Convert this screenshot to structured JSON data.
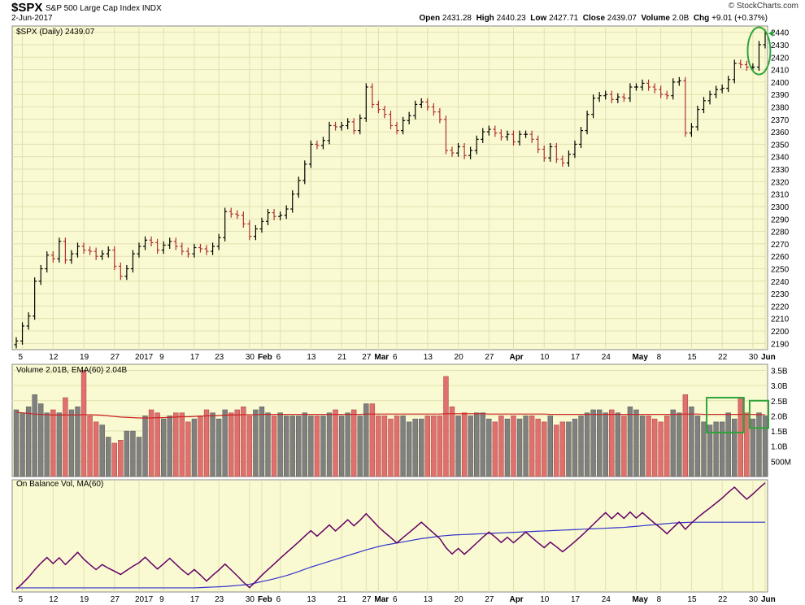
{
  "header": {
    "symbol": "$SPX",
    "description": "S&P 500 Large Cap Index  INDX",
    "date": "2-Jun-2017",
    "brand": "© StockCharts.com",
    "open_label": "Open",
    "open": "2431.28",
    "high_label": "High",
    "high": "2440.23",
    "low_label": "Low",
    "low": "2427.71",
    "close_label": "Close",
    "close": "2439.07",
    "volume_label": "Volume",
    "volume": "2.0B",
    "chg_label": "Chg",
    "chg": "+9.01 (+0.37%)"
  },
  "panels": {
    "price_label": "$SPX (Daily) 2439.07",
    "volume_label": "Volume 2.01B, EMA(60) 2.04B",
    "obv_label": "On Balance Vol, MA(60)"
  },
  "colors": {
    "panel_bg": "#fafad2",
    "up": "#000000",
    "down": "#b03030",
    "vol_up": "#808080",
    "vol_down": "#e07070",
    "ema": "#cc2222",
    "obv": "#660066",
    "obv_ma": "#3333cc",
    "annotation": "#2ea43a"
  },
  "chart_data": [
    {
      "type": "ohlc",
      "title": "$SPX (Daily) 2439.07",
      "ylim": [
        2185,
        2445
      ],
      "yticks": [
        2190,
        2200,
        2210,
        2220,
        2230,
        2240,
        2250,
        2260,
        2270,
        2280,
        2290,
        2300,
        2310,
        2320,
        2330,
        2340,
        2350,
        2360,
        2370,
        2380,
        2390,
        2400,
        2410,
        2420,
        2430,
        2440
      ],
      "x_ticks": [
        {
          "i": 1,
          "label": "5"
        },
        {
          "i": 6,
          "label": "12"
        },
        {
          "i": 11,
          "label": "19"
        },
        {
          "i": 16,
          "label": "27"
        },
        {
          "i": 20,
          "label": "2017"
        },
        {
          "i": 24,
          "label": "9"
        },
        {
          "i": 29,
          "label": "17"
        },
        {
          "i": 33,
          "label": "23"
        },
        {
          "i": 38,
          "label": "30"
        },
        {
          "i": 40,
          "label": "Feb"
        },
        {
          "i": 43,
          "label": "6"
        },
        {
          "i": 48,
          "label": "13"
        },
        {
          "i": 53,
          "label": "21"
        },
        {
          "i": 57,
          "label": "27"
        },
        {
          "i": 59,
          "label": "Mar"
        },
        {
          "i": 62,
          "label": "6"
        },
        {
          "i": 67,
          "label": "13"
        },
        {
          "i": 72,
          "label": "20"
        },
        {
          "i": 77,
          "label": "27"
        },
        {
          "i": 81,
          "label": "Apr"
        },
        {
          "i": 86,
          "label": "10"
        },
        {
          "i": 91,
          "label": "17"
        },
        {
          "i": 96,
          "label": "24"
        },
        {
          "i": 101,
          "label": "May"
        },
        {
          "i": 105,
          "label": "8"
        },
        {
          "i": 110,
          "label": "15"
        },
        {
          "i": 115,
          "label": "22"
        },
        {
          "i": 120,
          "label": "30"
        },
        {
          "i": 122,
          "label": "Jun"
        }
      ],
      "close": [
        2192,
        2204,
        2212,
        2240,
        2250,
        2261,
        2258,
        2272,
        2257,
        2262,
        2268,
        2265,
        2264,
        2260,
        2262,
        2265,
        2252,
        2244,
        2250,
        2262,
        2268,
        2273,
        2271,
        2265,
        2269,
        2272,
        2268,
        2264,
        2262,
        2267,
        2266,
        2264,
        2268,
        2275,
        2296,
        2294,
        2293,
        2286,
        2276,
        2282,
        2288,
        2295,
        2292,
        2293,
        2298,
        2310,
        2321,
        2334,
        2350,
        2349,
        2353,
        2365,
        2364,
        2365,
        2368,
        2361,
        2371,
        2396,
        2382,
        2378,
        2374,
        2365,
        2361,
        2369,
        2373,
        2382,
        2384,
        2380,
        2376,
        2370,
        2345,
        2343,
        2348,
        2341,
        2345,
        2354,
        2360,
        2362,
        2359,
        2356,
        2358,
        2352,
        2358,
        2358,
        2354,
        2346,
        2339,
        2348,
        2338,
        2335,
        2342,
        2350,
        2361,
        2374,
        2387,
        2389,
        2390,
        2386,
        2388,
        2387,
        2396,
        2396,
        2399,
        2396,
        2394,
        2390,
        2389,
        2400,
        2401,
        2359,
        2364,
        2378,
        2385,
        2390,
        2394,
        2395,
        2402,
        2415,
        2414,
        2412,
        2412,
        2430,
        2439
      ],
      "volume_ylim": [
        0,
        3.7
      ],
      "volume_yticks": [
        {
          "v": 0.5,
          "label": "500M"
        },
        {
          "v": 1.0,
          "label": "1.0B"
        },
        {
          "v": 1.5,
          "label": "1.5B"
        },
        {
          "v": 2.0,
          "label": "2.0B"
        },
        {
          "v": 2.5,
          "label": "2.5B"
        },
        {
          "v": 3.0,
          "label": "3.0B"
        },
        {
          "v": 3.5,
          "label": "3.5B"
        }
      ],
      "volume": [
        2.2,
        2.1,
        2.3,
        2.7,
        2.4,
        2.1,
        2.2,
        2.1,
        2.6,
        2.2,
        2.3,
        3.5,
        2.0,
        1.8,
        1.7,
        1.3,
        1.1,
        1.2,
        1.5,
        1.5,
        1.3,
        2.0,
        2.2,
        2.1,
        1.9,
        2.0,
        2.1,
        2.1,
        1.8,
        1.9,
        2.0,
        2.2,
        2.1,
        1.9,
        2.2,
        2.1,
        2.2,
        2.3,
        2.0,
        2.2,
        2.3,
        2.1,
        2.0,
        2.1,
        2.0,
        2.0,
        2.0,
        2.1,
        2.0,
        2.0,
        2.0,
        2.1,
        2.2,
        2.0,
        2.1,
        2.2,
        2.0,
        2.4,
        2.4,
        2.0,
        2.0,
        1.9,
        2.0,
        2.0,
        1.8,
        1.9,
        1.9,
        2.0,
        2.0,
        2.0,
        3.3,
        2.3,
        2.0,
        2.1,
        2.0,
        2.1,
        2.1,
        1.9,
        1.8,
        2.0,
        1.9,
        2.0,
        1.9,
        2.0,
        2.0,
        1.9,
        1.8,
        2.0,
        1.7,
        1.8,
        1.8,
        1.9,
        2.0,
        2.1,
        2.2,
        2.2,
        2.1,
        2.2,
        2.1,
        2.0,
        2.3,
        2.2,
        2.0,
        2.0,
        1.9,
        1.8,
        2.0,
        2.2,
        2.1,
        2.7,
        2.3,
        2.0,
        1.8,
        1.7,
        1.8,
        1.8,
        2.1,
        1.9,
        2.6,
        2.1,
        1.9,
        2.1,
        2.0
      ],
      "volume_ema60": [
        2.12,
        2.1,
        2.08,
        2.06,
        2.05,
        2.04,
        2.03,
        2.03,
        2.03,
        2.03,
        2.03,
        2.04,
        2.04,
        2.03,
        2.02,
        2.0,
        1.98,
        1.96,
        1.95,
        1.94,
        1.93,
        1.93,
        1.93,
        1.94,
        1.94,
        1.95,
        1.96,
        1.97,
        1.97,
        1.98,
        1.99,
        2.0,
        2.0,
        2.01,
        2.02,
        2.03,
        2.03,
        2.04,
        2.04,
        2.04,
        2.05,
        2.05,
        2.05,
        2.05,
        2.05,
        2.05,
        2.05,
        2.05,
        2.05,
        2.05,
        2.05,
        2.05,
        2.05,
        2.05,
        2.05,
        2.05,
        2.05,
        2.06,
        2.06,
        2.06,
        2.06,
        2.06,
        2.06,
        2.06,
        2.06,
        2.06,
        2.06,
        2.06,
        2.06,
        2.06,
        2.07,
        2.07,
        2.07,
        2.07,
        2.07,
        2.07,
        2.07,
        2.06,
        2.06,
        2.06,
        2.06,
        2.06,
        2.06,
        2.06,
        2.06,
        2.06,
        2.06,
        2.05,
        2.05,
        2.05,
        2.05,
        2.05,
        2.05,
        2.05,
        2.05,
        2.05,
        2.05,
        2.05,
        2.05,
        2.05,
        2.05,
        2.05,
        2.05,
        2.05,
        2.05,
        2.05,
        2.05,
        2.05,
        2.05,
        2.06,
        2.06,
        2.06,
        2.05,
        2.05,
        2.05,
        2.05,
        2.05,
        2.05,
        2.05,
        2.05,
        2.05,
        2.04,
        2.04
      ],
      "obv": [
        0,
        2.1,
        4.4,
        7.1,
        9.5,
        11.6,
        9.4,
        11.5,
        9.0,
        11.2,
        13.5,
        11.0,
        9.0,
        7.2,
        9.0,
        7.7,
        6.6,
        5.4,
        6.9,
        8.4,
        9.7,
        11.7,
        9.5,
        7.4,
        9.3,
        11.3,
        9.2,
        7.1,
        5.3,
        7.2,
        5.2,
        3.0,
        5.1,
        7.0,
        9.2,
        7.1,
        4.9,
        2.6,
        0.6,
        2.8,
        5.1,
        7.2,
        9.2,
        11.3,
        13.3,
        15.3,
        17.3,
        19.4,
        21.4,
        19.4,
        21.4,
        23.5,
        21.3,
        23.3,
        25.4,
        23.2,
        25.2,
        27.6,
        25.2,
        22.8,
        20.8,
        18.9,
        16.9,
        18.9,
        20.7,
        22.6,
        24.5,
        22.5,
        20.5,
        18.5,
        15.2,
        12.9,
        14.9,
        12.8,
        14.8,
        16.9,
        19.0,
        20.9,
        19.1,
        17.1,
        19.0,
        17.0,
        18.9,
        20.9,
        18.9,
        17.0,
        15.2,
        17.2,
        15.5,
        13.7,
        15.5,
        17.4,
        19.4,
        21.5,
        23.7,
        25.9,
        28.0,
        25.8,
        27.9,
        25.9,
        28.2,
        26.0,
        28.0,
        26.0,
        24.1,
        22.3,
        20.3,
        22.5,
        24.6,
        21.9,
        24.2,
        26.2,
        28.0,
        29.7,
        31.5,
        33.3,
        35.4,
        37.3,
        35.0,
        32.9,
        34.8,
        36.9,
        38.9
      ],
      "obv_ma60": [
        0.5,
        0.5,
        0.5,
        0.5,
        0.5,
        0.5,
        0.5,
        0.5,
        0.5,
        0.5,
        0.5,
        0.5,
        0.5,
        0.5,
        0.5,
        0.5,
        0.5,
        0.5,
        0.5,
        0.5,
        0.5,
        0.5,
        0.5,
        0.5,
        0.5,
        0.5,
        0.5,
        0.5,
        0.5,
        0.5,
        0.6,
        0.7,
        0.8,
        0.9,
        1.0,
        1.2,
        1.4,
        1.6,
        1.8,
        2.3,
        2.8,
        3.3,
        3.8,
        4.4,
        5.0,
        5.7,
        6.5,
        7.3,
        8.1,
        8.8,
        9.5,
        10.2,
        10.9,
        11.6,
        12.3,
        13.0,
        13.7,
        14.4,
        15.0,
        15.6,
        16.1,
        16.5,
        16.9,
        17.3,
        17.7,
        18.1,
        18.5,
        18.8,
        19.1,
        19.4,
        19.6,
        19.8,
        19.9,
        20.0,
        20.1,
        20.2,
        20.3,
        20.4,
        20.5,
        20.6,
        20.7,
        20.8,
        20.9,
        21.0,
        21.1,
        21.2,
        21.3,
        21.4,
        21.5,
        21.6,
        21.7,
        21.8,
        21.9,
        22.0,
        22.1,
        22.2,
        22.3,
        22.4,
        22.5,
        22.6,
        22.8,
        23.0,
        23.2,
        23.4,
        23.6,
        23.8,
        24.0,
        24.2,
        24.3,
        24.4,
        24.5,
        24.5,
        24.5,
        24.5,
        24.5,
        24.5,
        24.5,
        24.5,
        24.5,
        24.5,
        24.5,
        24.5,
        24.5
      ]
    }
  ]
}
